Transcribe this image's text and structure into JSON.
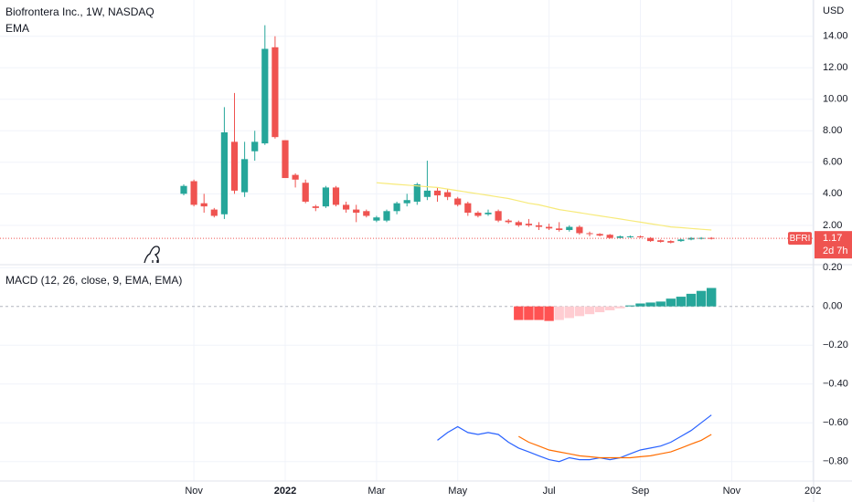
{
  "chart_data": [
    {
      "type": "candlestick",
      "title": "Biofrontera Inc., 1W, NASDAQ",
      "y_label": "USD",
      "categories": [
        null,
        "Nov",
        null,
        null,
        null,
        null,
        null,
        null,
        null,
        null,
        "2022",
        null,
        null,
        null,
        null,
        null,
        null,
        null,
        null,
        "Mar",
        null,
        null,
        null,
        null,
        null,
        null,
        null,
        "May",
        null,
        null,
        null,
        null,
        null,
        null,
        null,
        null,
        "Jul",
        null,
        null,
        null,
        null,
        null,
        null,
        null,
        null,
        "Sep",
        null,
        null,
        null,
        null,
        null,
        null,
        null,
        null,
        "Nov",
        null,
        null,
        null,
        null,
        null,
        null,
        null,
        "202"
      ],
      "open": [
        4.0,
        4.8,
        3.4,
        3.0,
        2.7,
        7.3,
        4.1,
        6.7,
        7.2,
        13.3,
        7.4,
        5.2,
        4.7,
        3.2,
        3.2,
        4.4,
        3.3,
        3.0,
        2.9,
        2.3,
        2.3,
        2.9,
        3.4,
        3.5,
        3.8,
        4.2,
        4.1,
        3.7,
        3.4,
        2.8,
        2.7,
        2.9,
        2.3,
        2.2,
        2.1,
        2.0,
        1.9,
        1.8,
        1.7,
        1.9,
        1.5,
        1.45,
        1.4,
        1.2,
        1.25,
        1.3,
        1.2,
        1.05,
        1.0,
        1.0,
        1.1,
        1.15,
        1.2,
        null,
        null,
        null,
        null,
        null,
        null,
        null,
        null,
        null,
        null
      ],
      "high": [
        4.6,
        4.9,
        4.0,
        3.1,
        9.5,
        10.4,
        7.3,
        8.0,
        14.7,
        14.0,
        7.4,
        5.3,
        4.9,
        3.3,
        4.5,
        4.5,
        3.5,
        3.3,
        3.0,
        2.6,
        3.0,
        3.5,
        4.0,
        4.7,
        6.1,
        4.4,
        4.3,
        3.8,
        3.5,
        2.9,
        3.0,
        3.0,
        2.4,
        2.3,
        2.4,
        2.2,
        2.1,
        2.2,
        2.0,
        2.0,
        1.6,
        1.5,
        1.45,
        1.35,
        1.35,
        1.35,
        1.25,
        1.1,
        1.05,
        1.15,
        1.25,
        1.25,
        1.25,
        null,
        null,
        null,
        null,
        null,
        null,
        null,
        null,
        null,
        null
      ],
      "low": [
        3.9,
        3.2,
        2.8,
        2.5,
        2.4,
        4.0,
        3.8,
        6.1,
        7.1,
        7.5,
        5.0,
        4.4,
        3.4,
        2.9,
        3.1,
        3.2,
        2.8,
        2.2,
        2.5,
        2.2,
        2.2,
        2.7,
        3.2,
        3.3,
        3.6,
        3.5,
        3.6,
        3.2,
        2.6,
        2.5,
        2.6,
        2.2,
        2.1,
        1.9,
        1.9,
        1.7,
        1.7,
        1.6,
        1.6,
        1.4,
        1.3,
        1.3,
        1.15,
        1.15,
        1.2,
        1.2,
        0.95,
        0.9,
        0.85,
        0.95,
        1.05,
        1.1,
        1.1,
        null,
        null,
        null,
        null,
        null,
        null,
        null,
        null,
        null,
        null
      ],
      "close": [
        4.5,
        3.3,
        3.2,
        2.6,
        7.9,
        4.2,
        6.2,
        7.3,
        13.2,
        7.6,
        5.0,
        4.9,
        3.5,
        3.1,
        4.4,
        3.3,
        3.0,
        2.8,
        2.6,
        2.5,
        2.9,
        3.4,
        3.6,
        4.6,
        4.2,
        3.9,
        3.8,
        3.3,
        2.8,
        2.6,
        2.8,
        2.3,
        2.2,
        2.0,
        2.0,
        1.9,
        1.8,
        1.7,
        1.9,
        1.5,
        1.45,
        1.35,
        1.2,
        1.3,
        1.3,
        1.25,
        1.0,
        0.95,
        0.9,
        1.1,
        1.2,
        1.2,
        1.17,
        null,
        null,
        null,
        null,
        null,
        null,
        null,
        null,
        null,
        null
      ],
      "up_color": "#26a69a",
      "down_color": "#ef5350",
      "series": [
        {
          "name": "EMA",
          "color": "#f7ea7a",
          "values": [
            null,
            null,
            null,
            null,
            null,
            null,
            null,
            null,
            null,
            null,
            null,
            null,
            null,
            null,
            null,
            null,
            null,
            null,
            null,
            4.7,
            4.65,
            4.6,
            4.55,
            4.5,
            4.45,
            4.4,
            4.3,
            4.2,
            4.1,
            4.0,
            3.9,
            3.8,
            3.7,
            3.55,
            3.4,
            3.3,
            3.15,
            3.0,
            2.9,
            2.8,
            2.7,
            2.6,
            2.5,
            2.4,
            2.3,
            2.2,
            2.1,
            2.0,
            1.9,
            1.85,
            1.8,
            1.75,
            1.7,
            null,
            null,
            null,
            null,
            null,
            null,
            null,
            null,
            null,
            null
          ]
        }
      ],
      "ylim": [
        -0.5,
        16.3
      ],
      "yticks": [
        {
          "value": 2,
          "label": "2.00"
        },
        {
          "value": 4,
          "label": "4.00"
        },
        {
          "value": 6,
          "label": "6.00"
        },
        {
          "value": 8,
          "label": "8.00"
        },
        {
          "value": 10,
          "label": "10.00"
        },
        {
          "value": 12,
          "label": "12.00"
        },
        {
          "value": 14,
          "label": "14.00"
        }
      ],
      "grid": true,
      "last_price": 1.17,
      "symbol": "BFRI",
      "countdown": "2d 7h"
    },
    {
      "type": "macd",
      "title": "MACD (12, 26, close, 9, EMA, EMA)",
      "histogram": {
        "values": [
          null,
          null,
          null,
          null,
          null,
          null,
          null,
          null,
          null,
          null,
          null,
          null,
          null,
          null,
          null,
          null,
          null,
          null,
          null,
          null,
          null,
          null,
          null,
          null,
          null,
          null,
          null,
          null,
          null,
          null,
          null,
          null,
          null,
          -0.07,
          -0.07,
          -0.07,
          -0.075,
          -0.07,
          -0.06,
          -0.05,
          -0.04,
          -0.03,
          -0.02,
          -0.01,
          0.005,
          0.015,
          0.02,
          0.025,
          0.04,
          0.05,
          0.065,
          0.08,
          0.095,
          null,
          null,
          null,
          null,
          null,
          null,
          null,
          null,
          null,
          null
        ],
        "colors": {
          "rising_above": "#26a69a",
          "falling_above": "#b2dfdb",
          "rising_below": "#ffcdd2",
          "falling_below": "#ff5252"
        }
      },
      "series": [
        {
          "color": "#2962ff",
          "values": [
            null,
            null,
            null,
            null,
            null,
            null,
            null,
            null,
            null,
            null,
            null,
            null,
            null,
            null,
            null,
            null,
            null,
            null,
            null,
            null,
            null,
            null,
            null,
            null,
            null,
            -0.69,
            -0.65,
            -0.62,
            -0.65,
            -0.66,
            -0.65,
            -0.66,
            -0.7,
            -0.73,
            -0.75,
            -0.77,
            -0.79,
            -0.8,
            -0.78,
            -0.79,
            -0.79,
            -0.78,
            -0.79,
            -0.78,
            -0.76,
            -0.74,
            -0.73,
            -0.72,
            -0.7,
            -0.67,
            -0.64,
            -0.6,
            -0.56,
            null,
            null,
            null,
            null,
            null,
            null,
            null,
            null,
            null,
            null
          ]
        },
        {
          "color": "#ff6d00",
          "values": [
            null,
            null,
            null,
            null,
            null,
            null,
            null,
            null,
            null,
            null,
            null,
            null,
            null,
            null,
            null,
            null,
            null,
            null,
            null,
            null,
            null,
            null,
            null,
            null,
            null,
            null,
            null,
            null,
            null,
            null,
            null,
            null,
            null,
            -0.67,
            -0.7,
            -0.72,
            -0.74,
            -0.75,
            -0.76,
            -0.77,
            -0.775,
            -0.78,
            -0.78,
            -0.78,
            -0.78,
            -0.775,
            -0.77,
            -0.76,
            -0.75,
            -0.73,
            -0.71,
            -0.69,
            -0.66,
            null,
            null,
            null,
            null,
            null,
            null,
            null,
            null,
            null,
            null
          ]
        }
      ],
      "ylim": [
        -0.9,
        0.215
      ],
      "yticks": [
        {
          "value": -0.8,
          "label": "−0.80"
        },
        {
          "value": -0.6,
          "label": "−0.60"
        },
        {
          "value": -0.4,
          "label": "−0.40"
        },
        {
          "value": -0.2,
          "label": "−0.20"
        },
        {
          "value": 0,
          "label": "0.00"
        },
        {
          "value": 0.2,
          "label": "0.20"
        }
      ],
      "grid": true
    }
  ]
}
